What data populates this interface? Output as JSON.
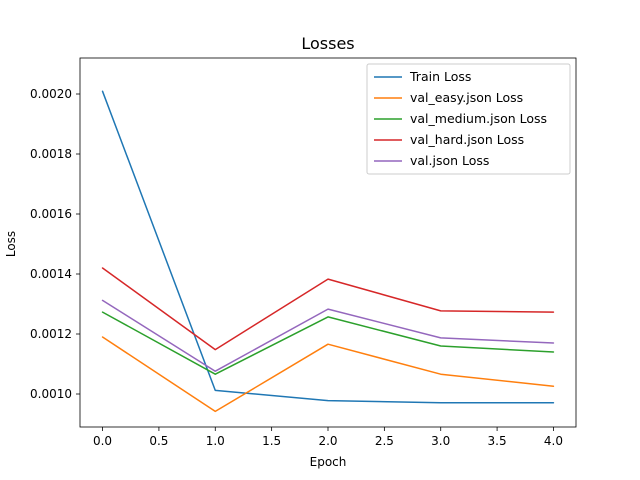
{
  "chart_data": {
    "type": "line",
    "title": "Losses",
    "xlabel": "Epoch",
    "ylabel": "Loss",
    "x": [
      0,
      1,
      2,
      3,
      4
    ],
    "xlim": [
      -0.2,
      4.2
    ],
    "ylim": [
      0.00089,
      0.00212
    ],
    "xticks": [
      0.0,
      0.5,
      1.0,
      1.5,
      2.0,
      2.5,
      3.0,
      3.5,
      4.0
    ],
    "xtick_labels": [
      "0.0",
      "0.5",
      "1.0",
      "1.5",
      "2.0",
      "2.5",
      "3.0",
      "3.5",
      "4.0"
    ],
    "yticks": [
      0.001,
      0.0012,
      0.0014,
      0.0016,
      0.0018,
      0.002
    ],
    "ytick_labels": [
      "0.0010",
      "0.0012",
      "0.0014",
      "0.0016",
      "0.0018",
      "0.0020"
    ],
    "grid": false,
    "legend_position": "top-right",
    "series": [
      {
        "name": "Train Loss",
        "color": "#1f77b4",
        "values": [
          0.002009,
          0.001012,
          0.000978,
          0.000971,
          0.000971
        ]
      },
      {
        "name": "val_easy.json Loss",
        "color": "#ff7f0e",
        "values": [
          0.00119,
          0.000942,
          0.001166,
          0.001066,
          0.001026
        ]
      },
      {
        "name": "val_medium.json Loss",
        "color": "#2ca02c",
        "values": [
          0.001273,
          0.001066,
          0.001257,
          0.00116,
          0.00114
        ]
      },
      {
        "name": "val_hard.json Loss",
        "color": "#d62728",
        "values": [
          0.00142,
          0.001148,
          0.001383,
          0.001277,
          0.001273
        ]
      },
      {
        "name": "val.json Loss",
        "color": "#9467bd",
        "values": [
          0.001312,
          0.001076,
          0.001283,
          0.001187,
          0.00117
        ]
      }
    ]
  }
}
